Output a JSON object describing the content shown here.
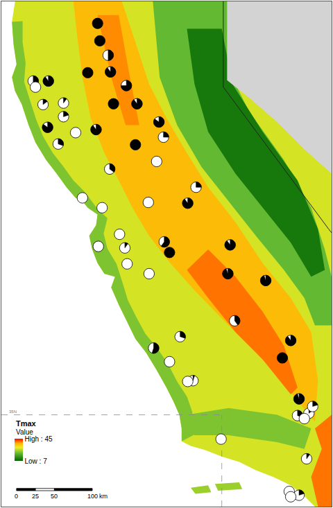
{
  "chart_data": {
    "type": "map",
    "xlim": [
      0,
      436
    ],
    "ylim": [
      0,
      666
    ],
    "tick_labels": false,
    "grid": false,
    "zones": [
      {
        "value": 28,
        "path": [
          [
            18,
            666
          ],
          [
            436,
            666
          ],
          [
            436,
            0
          ],
          [
            414,
            0
          ],
          [
            400,
            14
          ],
          [
            382,
            28
          ],
          [
            359,
            39
          ],
          [
            336,
            48
          ],
          [
            314,
            59
          ],
          [
            291,
            66
          ],
          [
            268,
            75
          ],
          [
            250,
            80
          ],
          [
            238,
            86
          ],
          [
            238,
            103
          ],
          [
            235,
            121
          ],
          [
            227,
            139
          ],
          [
            218,
            157
          ],
          [
            205,
            180
          ],
          [
            191,
            203
          ],
          [
            177,
            221
          ],
          [
            166,
            244
          ],
          [
            155,
            266
          ],
          [
            145,
            289
          ],
          [
            150,
            303
          ],
          [
            136,
            307
          ],
          [
            127,
            321
          ],
          [
            120,
            339
          ],
          [
            116,
            357
          ],
          [
            125,
            371
          ],
          [
            127,
            385
          ],
          [
            114,
            394
          ],
          [
            107,
            403
          ],
          [
            98,
            407
          ],
          [
            86,
            421
          ],
          [
            73,
            439
          ],
          [
            59,
            457
          ],
          [
            45,
            480
          ],
          [
            36,
            503
          ],
          [
            27,
            530
          ],
          [
            18,
            548
          ],
          [
            14,
            566
          ],
          [
            20,
            583
          ],
          [
            16,
            610
          ],
          [
            14,
            639
          ]
        ]
      },
      {
        "value": 22,
        "path": [
          [
            14,
            639
          ],
          [
            16,
            610
          ],
          [
            20,
            583
          ],
          [
            14,
            566
          ],
          [
            18,
            548
          ],
          [
            27,
            530
          ],
          [
            36,
            503
          ],
          [
            45,
            480
          ],
          [
            59,
            457
          ],
          [
            73,
            439
          ],
          [
            86,
            421
          ],
          [
            98,
            407
          ],
          [
            107,
            403
          ],
          [
            114,
            394
          ],
          [
            127,
            385
          ],
          [
            125,
            371
          ],
          [
            116,
            357
          ],
          [
            120,
            339
          ],
          [
            127,
            321
          ],
          [
            136,
            307
          ],
          [
            150,
            303
          ],
          [
            145,
            289
          ],
          [
            155,
            266
          ],
          [
            166,
            244
          ],
          [
            177,
            221
          ],
          [
            191,
            203
          ],
          [
            205,
            180
          ],
          [
            218,
            157
          ],
          [
            227,
            139
          ],
          [
            235,
            121
          ],
          [
            238,
            103
          ],
          [
            238,
            86
          ],
          [
            255,
            95
          ],
          [
            252,
            125
          ],
          [
            245,
            145
          ],
          [
            232,
            165
          ],
          [
            220,
            188
          ],
          [
            205,
            210
          ],
          [
            190,
            228
          ],
          [
            178,
            250
          ],
          [
            167,
            272
          ],
          [
            160,
            295
          ],
          [
            152,
            320
          ],
          [
            140,
            340
          ],
          [
            135,
            360
          ],
          [
            140,
            380
          ],
          [
            125,
            395
          ],
          [
            110,
            415
          ],
          [
            95,
            430
          ],
          [
            82,
            448
          ],
          [
            68,
            466
          ],
          [
            55,
            488
          ],
          [
            46,
            510
          ],
          [
            38,
            535
          ],
          [
            30,
            560
          ],
          [
            32,
            585
          ],
          [
            28,
            612
          ],
          [
            28,
            640
          ]
        ]
      },
      {
        "value": 36,
        "path": [
          [
            95,
            666
          ],
          [
            159,
            666
          ],
          [
            177,
            612
          ],
          [
            195,
            557
          ],
          [
            218,
            512
          ],
          [
            245,
            466
          ],
          [
            273,
            421
          ],
          [
            309,
            375
          ],
          [
            345,
            321
          ],
          [
            382,
            275
          ],
          [
            409,
            230
          ],
          [
            418,
            166
          ],
          [
            414,
            112
          ],
          [
            391,
            139
          ],
          [
            364,
            175
          ],
          [
            327,
            212
          ],
          [
            291,
            248
          ],
          [
            255,
            285
          ],
          [
            223,
            321
          ],
          [
            195,
            357
          ],
          [
            173,
            394
          ],
          [
            155,
            430
          ],
          [
            136,
            466
          ],
          [
            118,
            512
          ],
          [
            107,
            566
          ],
          [
            100,
            621
          ]
        ]
      },
      {
        "value": 39,
        "path": [
          [
            127,
            648
          ],
          [
            155,
            648
          ],
          [
            168,
            575
          ],
          [
            182,
            503
          ],
          [
            164,
            503
          ],
          [
            145,
            566
          ]
        ]
      },
      {
        "value": 40,
        "path": [
          [
            273,
            339
          ],
          [
            309,
            303
          ],
          [
            345,
            257
          ],
          [
            373,
            212
          ],
          [
            391,
            157
          ],
          [
            382,
            148
          ],
          [
            345,
            194
          ],
          [
            309,
            230
          ],
          [
            273,
            275
          ],
          [
            245,
            312
          ]
        ]
      },
      {
        "value": 20,
        "path": [
          [
            200,
            666
          ],
          [
            300,
            666
          ],
          [
            300,
            575
          ],
          [
            327,
            521
          ],
          [
            373,
            457
          ],
          [
            409,
            394
          ],
          [
            427,
            339
          ],
          [
            436,
            303
          ],
          [
            436,
            239
          ],
          [
            414,
            239
          ],
          [
            400,
            275
          ],
          [
            373,
            312
          ],
          [
            336,
            357
          ],
          [
            300,
            403
          ],
          [
            264,
            448
          ],
          [
            232,
            503
          ],
          [
            209,
            566
          ]
        ]
      },
      {
        "value": 10,
        "path": [
          [
            245,
            630
          ],
          [
            291,
            630
          ],
          [
            305,
            557
          ],
          [
            345,
            494
          ],
          [
            391,
            430
          ],
          [
            418,
            366
          ],
          [
            427,
            312
          ],
          [
            409,
            303
          ],
          [
            382,
            348
          ],
          [
            345,
            394
          ],
          [
            309,
            439
          ],
          [
            273,
            494
          ],
          [
            255,
            557
          ]
        ]
      },
      {
        "value": 22,
        "path": [
          [
            245,
            121
          ],
          [
            300,
            130
          ],
          [
            364,
            121
          ],
          [
            409,
            103
          ],
          [
            400,
            76
          ],
          [
            364,
            85
          ],
          [
            300,
            94
          ],
          [
            255,
            94
          ]
        ]
      },
      {
        "value": 40,
        "path": [
          [
            414,
            103
          ],
          [
            436,
            121
          ],
          [
            436,
            0
          ],
          [
            418,
            0
          ],
          [
            409,
            39
          ],
          [
            423,
            76
          ]
        ]
      },
      {
        "value": 24,
        "path": [
          [
            250,
            25
          ],
          [
            273,
            28
          ],
          [
            277,
            19
          ],
          [
            256,
            17
          ]
        ]
      },
      {
        "value": 24,
        "path": [
          [
            282,
            30
          ],
          [
            314,
            32
          ],
          [
            318,
            23
          ],
          [
            286,
            21
          ]
        ]
      }
    ],
    "no_data": {
      "color": "#d3d3d3",
      "path": [
        [
          298,
          666
        ],
        [
          436,
          666
        ],
        [
          436,
          439
        ],
        [
          400,
          471
        ],
        [
          364,
          507
        ],
        [
          327,
          539
        ],
        [
          298,
          562
        ]
      ]
    },
    "border": [
      [
        293,
        666
      ],
      [
        293,
        553
      ],
      [
        432,
        366
      ],
      [
        436,
        361
      ]
    ],
    "graticule": {
      "label": "35N",
      "lat_line_y": 121,
      "lon_line_x": 291
    },
    "colorbar": {
      "title": "Tmax",
      "subtitle": "Value",
      "range": [
        7,
        45
      ],
      "ticks": [
        {
          "value": 45,
          "label": "High : 45"
        },
        {
          "value": 7,
          "label": "Low : 7"
        }
      ]
    },
    "scale_bar": {
      "ticks": [
        0,
        25,
        50,
        100
      ],
      "unit": "km"
    },
    "sites": {
      "x": [
        127,
        130,
        141,
        114,
        144,
        165,
        42,
        45,
        62,
        55,
        82,
        82,
        148,
        179,
        61,
        98,
        125,
        208,
        214,
        75,
        177,
        205,
        143,
        257,
        246,
        107,
        133,
        194,
        156,
        128,
        163,
        215,
        222,
        166,
        302,
        195,
        299,
        349,
        308,
        236,
        201,
        222,
        382,
        371,
        253,
        246,
        393,
        391,
        406,
        411,
        400,
        290,
        403,
        380,
        393,
        382
      ],
      "y": [
        637,
        614,
        595,
        572,
        573,
        555,
        561,
        553,
        561,
        530,
        532,
        514,
        531,
        531,
        500,
        493,
        497,
        507,
        487,
        478,
        477,
        455,
        445,
        421,
        400,
        407,
        394,
        401,
        359,
        343,
        341,
        349,
        335,
        320,
        345,
        307,
        307,
        298,
        245,
        224,
        209,
        191,
        219,
        196,
        166,
        165,
        142,
        120,
        123,
        132,
        116,
        89,
        63,
        20,
        15,
        13
      ],
      "black_fraction": [
        1,
        1,
        0.5,
        1,
        0.9,
        0.75,
        0.5,
        0,
        0.9,
        0.15,
        0.1,
        0.2,
        1,
        0.9,
        0.85,
        0,
        0.9,
        0.85,
        0.25,
        0.3,
        1,
        0,
        0.35,
        0.25,
        0.9,
        0,
        0,
        0,
        0,
        0,
        0.1,
        0.6,
        1,
        0,
        0.9,
        0,
        0.95,
        0.95,
        0.4,
        0.3,
        0.55,
        0,
        0.9,
        1,
        0.05,
        0,
        0.95,
        0.3,
        0.15,
        0.2,
        0,
        0,
        0.1,
        0,
        0.2,
        0
      ]
    }
  }
}
